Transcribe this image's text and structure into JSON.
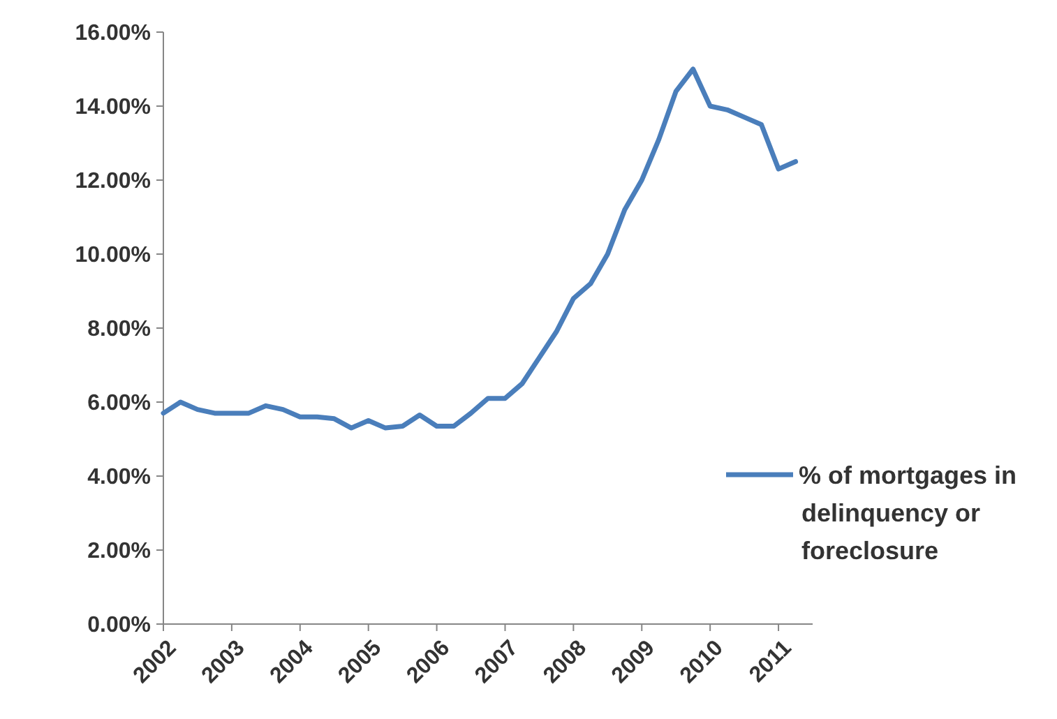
{
  "chart_data": {
    "type": "line",
    "x": [
      2002,
      2002.25,
      2002.5,
      2002.75,
      2003,
      2003.25,
      2003.5,
      2003.75,
      2004,
      2004.25,
      2004.5,
      2004.75,
      2005,
      2005.25,
      2005.5,
      2005.75,
      2006,
      2006.25,
      2006.5,
      2006.75,
      2007,
      2007.25,
      2007.5,
      2007.75,
      2008,
      2008.25,
      2008.5,
      2008.75,
      2009,
      2009.25,
      2009.5,
      2009.75,
      2010,
      2010.25,
      2010.5,
      2010.75,
      2011,
      2011.25
    ],
    "series": [
      {
        "name": "% of mortgages in delinquency or foreclosure",
        "color": "#4a7ebb",
        "values": [
          5.7,
          6.0,
          5.8,
          5.7,
          5.7,
          5.7,
          5.9,
          5.8,
          5.6,
          5.6,
          5.55,
          5.3,
          5.5,
          5.3,
          5.35,
          5.65,
          5.35,
          5.35,
          5.7,
          6.1,
          6.1,
          6.5,
          7.2,
          7.9,
          8.8,
          9.2,
          10.0,
          11.2,
          12.0,
          13.1,
          14.4,
          15.0,
          14.0,
          13.9,
          13.7,
          13.5,
          12.3,
          12.5
        ]
      }
    ],
    "xlim": [
      2002,
      2011.5
    ],
    "xticks": [
      2002,
      2003,
      2004,
      2005,
      2006,
      2007,
      2008,
      2009,
      2010,
      2011
    ],
    "ylim": [
      0,
      16
    ],
    "yticks": [
      {
        "value": 0,
        "label": "0.00%"
      },
      {
        "value": 2,
        "label": "2.00%"
      },
      {
        "value": 4,
        "label": "4.00%"
      },
      {
        "value": 6,
        "label": "6.00%"
      },
      {
        "value": 8,
        "label": "8.00%"
      },
      {
        "value": 10,
        "label": "10.00%"
      },
      {
        "value": 12,
        "label": "12.00%"
      },
      {
        "value": 14,
        "label": "14.00%"
      },
      {
        "value": 16,
        "label": "16.00%"
      }
    ],
    "legend": "right",
    "marker": "none",
    "line_style": "solid"
  }
}
